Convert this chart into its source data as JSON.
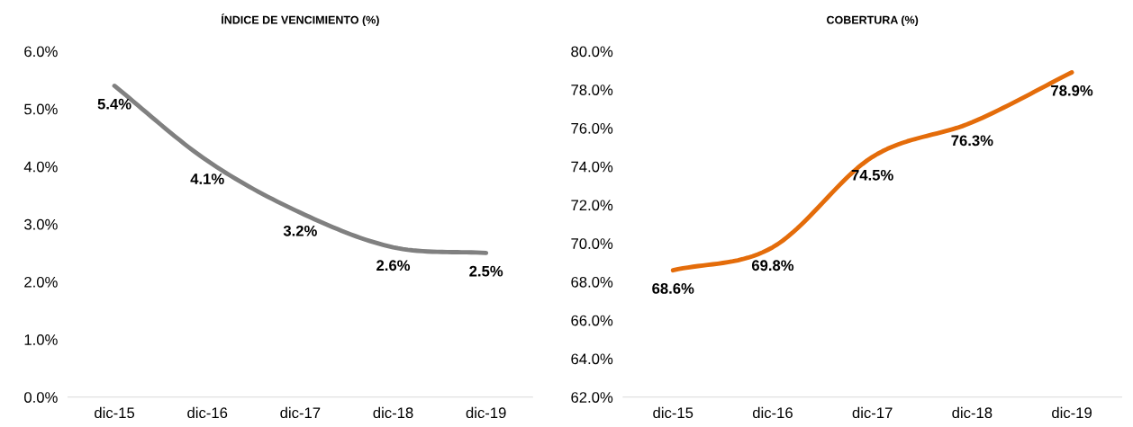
{
  "chart_data": [
    {
      "type": "line",
      "title": "ÍNDICE DE VENCIMIENTO (%)",
      "categories": [
        "dic-15",
        "dic-16",
        "dic-17",
        "dic-18",
        "dic-19"
      ],
      "series": [
        {
          "color": "#808080",
          "values": [
            5.4,
            4.1,
            3.2,
            2.6,
            2.5
          ]
        }
      ],
      "ylim": [
        0,
        6
      ],
      "yticks": [
        {
          "value": 0,
          "label": "0.0%"
        },
        {
          "value": 1,
          "label": "1.0%"
        },
        {
          "value": 2,
          "label": "2.0%"
        },
        {
          "value": 3,
          "label": "3.0%"
        },
        {
          "value": 4,
          "label": "4.0%"
        },
        {
          "value": 5,
          "label": "5.0%"
        },
        {
          "value": 6,
          "label": "6.0%"
        }
      ],
      "value_labels": [
        "5.4%",
        "4.1%",
        "3.2%",
        "2.6%",
        "2.5%"
      ],
      "grid": false,
      "legend": false,
      "marker": "none",
      "line_style": "solid"
    },
    {
      "type": "line",
      "title": "COBERTURA (%)",
      "categories": [
        "dic-15",
        "dic-16",
        "dic-17",
        "dic-18",
        "dic-19"
      ],
      "series": [
        {
          "color": "#e46c0a",
          "values": [
            68.6,
            69.8,
            74.5,
            76.3,
            78.9
          ]
        }
      ],
      "ylim": [
        62,
        80
      ],
      "yticks": [
        {
          "value": 62,
          "label": "62.0%"
        },
        {
          "value": 64,
          "label": "64.0%"
        },
        {
          "value": 66,
          "label": "66.0%"
        },
        {
          "value": 68,
          "label": "68.0%"
        },
        {
          "value": 70,
          "label": "70.0%"
        },
        {
          "value": 72,
          "label": "72.0%"
        },
        {
          "value": 74,
          "label": "74.0%"
        },
        {
          "value": 76,
          "label": "76.0%"
        },
        {
          "value": 78,
          "label": "78.0%"
        },
        {
          "value": 80,
          "label": "80.0%"
        }
      ],
      "value_labels": [
        "68.6%",
        "69.8%",
        "74.5%",
        "76.3%",
        "78.9%"
      ],
      "grid": false,
      "legend": false,
      "marker": "none",
      "line_style": "solid"
    }
  ]
}
